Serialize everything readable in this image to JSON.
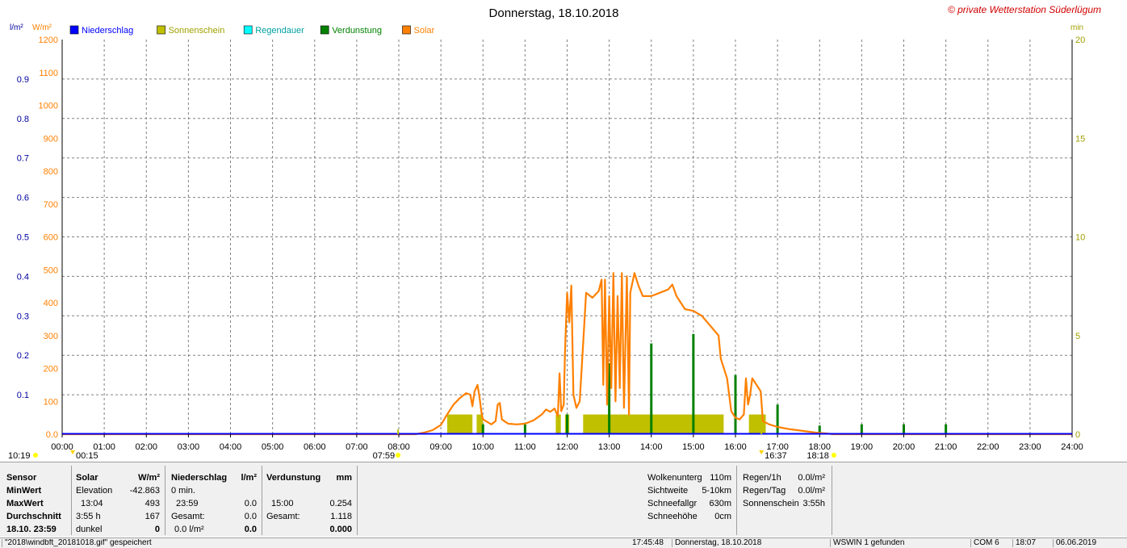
{
  "chart_data": {
    "type": "line",
    "title": "Donnerstag, 18.10.2018",
    "watermark": "© private Wetterstation Süderlügum",
    "left_axis_1": {
      "label": "l/m²",
      "min": 0,
      "max": 1,
      "ticks": [
        "0.0",
        "0.1",
        "0.2",
        "0.3",
        "0.4",
        "0.5",
        "0.6",
        "0.7",
        "0.8",
        "0.9"
      ],
      "color": "#0000a0"
    },
    "left_axis_2": {
      "label": "W/m²",
      "min": 0,
      "max": 1200,
      "ticks": [
        "0.0",
        "100",
        "200",
        "300",
        "400",
        "500",
        "600",
        "700",
        "800",
        "900",
        "1000",
        "1100",
        "1200"
      ],
      "color": "#ff8000"
    },
    "right_axis": {
      "label": "min",
      "min": 0,
      "max": 20,
      "ticks": [
        "0",
        "5",
        "10",
        "15",
        "20"
      ],
      "color": "#a0a000"
    },
    "x_axis": {
      "min_hour": 0,
      "max_hour": 24,
      "ticks": [
        "00:00",
        "01:00",
        "02:00",
        "03:00",
        "04:00",
        "05:00",
        "06:00",
        "07:00",
        "08:00",
        "09:00",
        "10:00",
        "11:00",
        "12:00",
        "13:00",
        "14:00",
        "15:00",
        "16:00",
        "17:00",
        "18:00",
        "19:00",
        "20:00",
        "21:00",
        "22:00",
        "23:00",
        "24:00"
      ]
    },
    "legend": [
      {
        "name": "Niederschlag",
        "color": "#0000ff"
      },
      {
        "name": "Sonnenschein",
        "color": "#c0c000"
      },
      {
        "name": "Regendauer",
        "color": "#00ffff"
      },
      {
        "name": "Verdunstung",
        "color": "#008000"
      },
      {
        "name": "Solar",
        "color": "#ff8000"
      }
    ],
    "grid": true,
    "markers": {
      "moonrise": "10:19",
      "moonrise_tick": "00:15",
      "sunrise": "07:59",
      "sunset": "16:37",
      "sunset_tick": "18:18"
    },
    "colors": {
      "solar": "#ff8000",
      "sunshine": "#c0c000",
      "evaporation": "#008000",
      "precip": "#0000ff",
      "grid": "#808080"
    },
    "solar_series": [
      [
        0,
        0
      ],
      [
        8.4,
        0
      ],
      [
        8.6,
        5
      ],
      [
        8.8,
        12
      ],
      [
        9.0,
        28
      ],
      [
        9.15,
        60
      ],
      [
        9.3,
        90
      ],
      [
        9.45,
        110
      ],
      [
        9.6,
        125
      ],
      [
        9.7,
        120
      ],
      [
        9.75,
        85
      ],
      [
        9.8,
        130
      ],
      [
        9.87,
        150
      ],
      [
        9.92,
        110
      ],
      [
        9.97,
        60
      ],
      [
        10.0,
        45
      ],
      [
        10.2,
        30
      ],
      [
        10.3,
        40
      ],
      [
        10.35,
        90
      ],
      [
        10.4,
        95
      ],
      [
        10.45,
        45
      ],
      [
        10.6,
        32
      ],
      [
        10.8,
        30
      ],
      [
        11.0,
        32
      ],
      [
        11.2,
        42
      ],
      [
        11.4,
        60
      ],
      [
        11.5,
        75
      ],
      [
        11.6,
        68
      ],
      [
        11.7,
        78
      ],
      [
        11.78,
        55
      ],
      [
        11.82,
        185
      ],
      [
        11.86,
        70
      ],
      [
        11.92,
        90
      ],
      [
        11.95,
        255
      ],
      [
        12.0,
        430
      ],
      [
        12.05,
        340
      ],
      [
        12.1,
        452
      ],
      [
        12.15,
        120
      ],
      [
        12.22,
        80
      ],
      [
        12.3,
        100
      ],
      [
        12.4,
        320
      ],
      [
        12.45,
        430
      ],
      [
        12.6,
        415
      ],
      [
        12.75,
        435
      ],
      [
        12.82,
        470
      ],
      [
        12.86,
        150
      ],
      [
        12.9,
        470
      ],
      [
        12.95,
        90
      ],
      [
        13.0,
        420
      ],
      [
        13.05,
        140
      ],
      [
        13.1,
        490
      ],
      [
        13.15,
        100
      ],
      [
        13.2,
        420
      ],
      [
        13.25,
        140
      ],
      [
        13.3,
        490
      ],
      [
        13.35,
        80
      ],
      [
        13.42,
        480
      ],
      [
        13.47,
        60
      ],
      [
        13.5,
        430
      ],
      [
        13.6,
        490
      ],
      [
        13.7,
        450
      ],
      [
        13.8,
        420
      ],
      [
        14.0,
        420
      ],
      [
        14.2,
        430
      ],
      [
        14.4,
        440
      ],
      [
        14.5,
        455
      ],
      [
        14.6,
        420
      ],
      [
        14.8,
        380
      ],
      [
        15.0,
        375
      ],
      [
        15.2,
        360
      ],
      [
        15.4,
        330
      ],
      [
        15.6,
        300
      ],
      [
        15.65,
        230
      ],
      [
        15.7,
        210
      ],
      [
        15.8,
        170
      ],
      [
        15.9,
        70
      ],
      [
        16.0,
        50
      ],
      [
        16.1,
        45
      ],
      [
        16.2,
        60
      ],
      [
        16.25,
        170
      ],
      [
        16.3,
        90
      ],
      [
        16.35,
        120
      ],
      [
        16.4,
        170
      ],
      [
        16.55,
        140
      ],
      [
        16.6,
        130
      ],
      [
        16.65,
        40
      ],
      [
        16.8,
        30
      ],
      [
        17.0,
        22
      ],
      [
        17.3,
        15
      ],
      [
        17.6,
        10
      ],
      [
        17.9,
        5
      ],
      [
        18.2,
        2
      ],
      [
        18.3,
        0
      ],
      [
        24,
        0
      ]
    ],
    "sunshine_blocks_min": [
      {
        "from": 9.15,
        "to": 9.75,
        "value": 1
      },
      {
        "from": 9.85,
        "to": 10.0,
        "value": 1
      },
      {
        "from": 11.73,
        "to": 11.85,
        "value": 1
      },
      {
        "from": 11.95,
        "to": 12.05,
        "value": 1
      },
      {
        "from": 12.38,
        "to": 15.72,
        "value": 1
      },
      {
        "from": 16.32,
        "to": 16.72,
        "value": 1
      }
    ],
    "evaporation_bars": [
      {
        "hour": 10.0,
        "value": 0.025
      },
      {
        "hour": 11.0,
        "value": 0.025
      },
      {
        "hour": 12.0,
        "value": 0.05
      },
      {
        "hour": 13.0,
        "value": 0.18
      },
      {
        "hour": 14.0,
        "value": 0.23
      },
      {
        "hour": 15.0,
        "value": 0.254
      },
      {
        "hour": 16.0,
        "value": 0.15
      },
      {
        "hour": 17.0,
        "value": 0.075
      },
      {
        "hour": 18.0,
        "value": 0.022
      },
      {
        "hour": 19.0,
        "value": 0.025
      },
      {
        "hour": 20.0,
        "value": 0.025
      },
      {
        "hour": 21.0,
        "value": 0.025
      }
    ]
  },
  "stats": {
    "sensor": "Sensor",
    "minwert": "MinWert",
    "maxwert": "MaxWert",
    "durchschnitt": "Durchschnitt",
    "datetime": "18.10. 23:59",
    "solar": {
      "head": "Solar",
      "unit": "W/m²",
      "r1a": "Elevation",
      "r1b": "-42.863",
      "r2a": "13:04",
      "r2b": "493",
      "r3a": "3:55 h",
      "r3b": "167",
      "r4a": "dunkel",
      "r4b": "0"
    },
    "nied": {
      "head": "Niederschlag",
      "unit": "l/m²",
      "r1a": "0 min.",
      "r1b": "",
      "r2a": "23:59",
      "r2b": "0.0",
      "r3a": "Gesamt:",
      "r3b": "0.0",
      "r4a": "0.0 l/m²",
      "r4b": "0.0"
    },
    "verd": {
      "head": "Verdunstung",
      "unit": "mm",
      "r1a": "",
      "r1b": "",
      "r2a": "15:00",
      "r2b": "0.254",
      "r3a": "Gesamt:",
      "r3b": "1.118",
      "r4a": "",
      "r4b": "0.000"
    },
    "wolken": {
      "l1": "Wolkenunterg",
      "v1": "110m",
      "l2": "Sichtweite",
      "v2": "5-10km",
      "l3": "Schneefallgr",
      "v3": "630m",
      "l4": "Schneehöhe",
      "v4": "0cm"
    },
    "regen": {
      "l1": "Regen/1h",
      "v1": "0.0l/m²",
      "l2": "Regen/Tag",
      "v2": "0.0l/m²",
      "l3": "Sonnenschein",
      "v3": "3:55h"
    }
  },
  "statusbar": {
    "s1": "\"2018\\windbft_20181018.gif\" gespeichert",
    "s2": "17:45:48",
    "s3": "Donnerstag, 18.10.2018",
    "s4": "WSWIN 1 gefunden",
    "s5": "COM 6",
    "s6": "18:07",
    "s7": "06.06.2019"
  }
}
